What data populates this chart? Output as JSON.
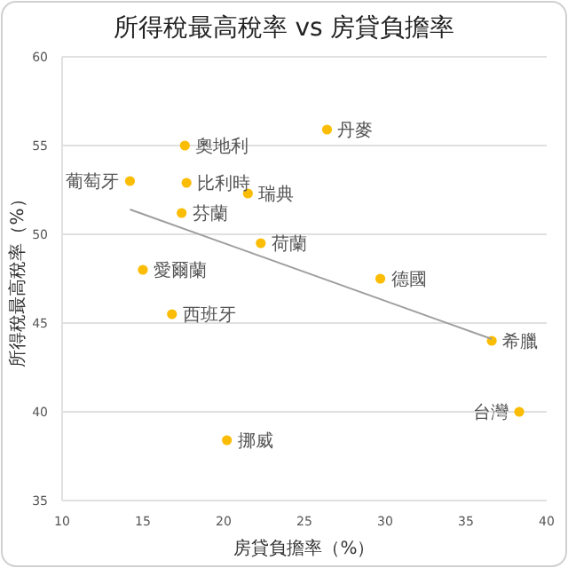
{
  "chart_data": {
    "type": "scatter",
    "title": "所得稅最高稅率 vs 房貸負擔率",
    "xlabel": "房貸負擔率（%）",
    "ylabel": "所得稅最高稅率（%）",
    "xlim": [
      10,
      40
    ],
    "xticks": [
      10,
      15,
      20,
      25,
      30,
      35,
      40
    ],
    "ylim": [
      35,
      60
    ],
    "yticks": [
      35,
      40,
      45,
      50,
      55,
      60
    ],
    "grid": "y",
    "series": [
      {
        "color": "#fbbc04",
        "marker": "circle",
        "x": [
          17.6,
          26.4,
          14.2,
          17.7,
          21.5,
          17.4,
          22.3,
          15.0,
          16.8,
          20.2,
          29.7,
          36.6,
          38.3
        ],
        "values": [
          55.0,
          55.9,
          53.0,
          52.9,
          52.3,
          51.2,
          49.5,
          48.0,
          45.5,
          38.4,
          47.5,
          44.0,
          40.0
        ]
      },
      {
        "type": "line",
        "color": "#9e9e9e",
        "x": [
          14.2,
          36.6
        ],
        "values": [
          51.4,
          44.1
        ]
      }
    ],
    "annotations": [
      {
        "text": "奧地利",
        "x": 17.6,
        "y": 55.0
      },
      {
        "text": "丹麥",
        "x": 26.4,
        "y": 55.9
      },
      {
        "text": "葡萄牙",
        "x": 14.2,
        "y": 53.0
      },
      {
        "text": "比利時",
        "x": 17.7,
        "y": 52.9
      },
      {
        "text": "瑞典",
        "x": 21.5,
        "y": 52.3
      },
      {
        "text": "芬蘭",
        "x": 17.4,
        "y": 51.2
      },
      {
        "text": "荷蘭",
        "x": 22.3,
        "y": 49.5
      },
      {
        "text": "愛爾蘭",
        "x": 15.0,
        "y": 48.0
      },
      {
        "text": "西班牙",
        "x": 16.8,
        "y": 45.5
      },
      {
        "text": "挪威",
        "x": 20.2,
        "y": 38.4
      },
      {
        "text": "德國",
        "x": 29.7,
        "y": 47.5
      },
      {
        "text": "希臘",
        "x": 36.6,
        "y": 44.0
      },
      {
        "text": "台灣",
        "x": 38.3,
        "y": 40.0
      }
    ]
  }
}
